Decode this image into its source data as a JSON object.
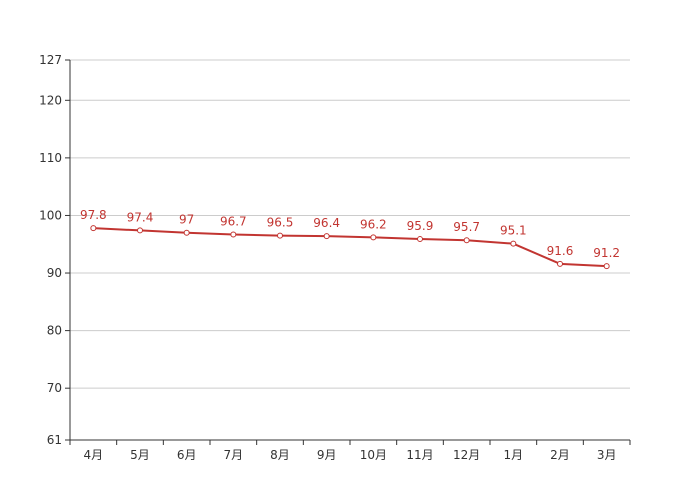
{
  "colors": {
    "line": "#c23531",
    "grid": "#cccccc",
    "axis": "#333333",
    "text": "#333333",
    "point_fill": "#ffffff"
  },
  "chart_data": {
    "type": "line",
    "title": "",
    "xlabel": "",
    "ylabel": "",
    "categories": [
      "4月",
      "5月",
      "6月",
      "7月",
      "8月",
      "9月",
      "10月",
      "11月",
      "12月",
      "1月",
      "2月",
      "3月"
    ],
    "series": [
      {
        "values": [
          97.8,
          97.4,
          97,
          96.7,
          96.5,
          96.4,
          96.2,
          95.9,
          95.7,
          95.1,
          91.6,
          91.2
        ]
      }
    ],
    "ylim": [
      61,
      127
    ],
    "yticks": [
      61,
      70,
      80,
      90,
      100,
      110,
      120,
      127
    ],
    "grid": true,
    "legend": "none",
    "data_labels": true
  }
}
